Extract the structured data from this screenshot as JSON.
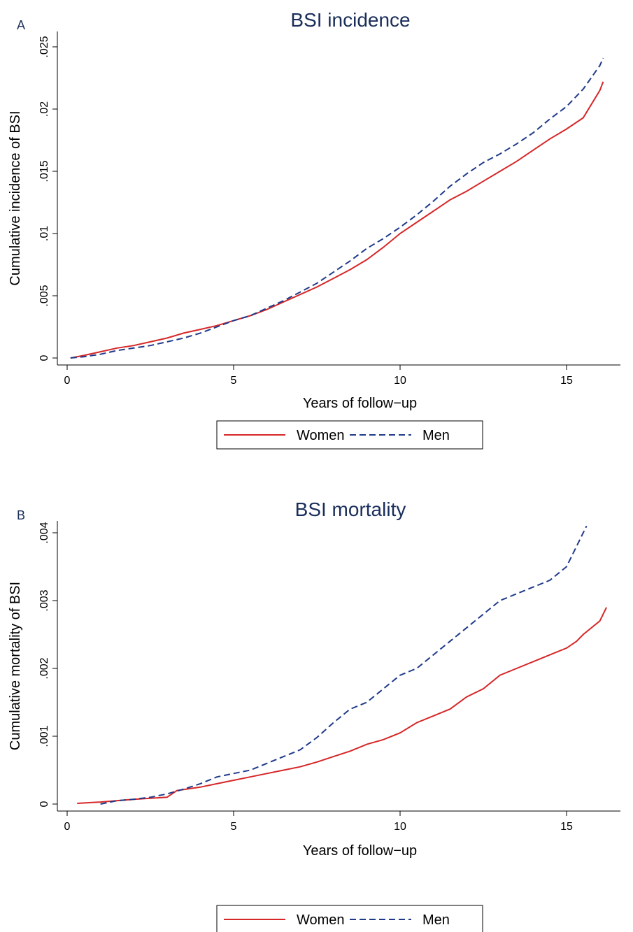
{
  "chart_data": [
    {
      "type": "line",
      "panel": "A",
      "title": "BSI incidence",
      "xlabel": "Years of follow−up",
      "ylabel": "Cumulative incidence of BSI",
      "xlim": [
        0,
        16.2
      ],
      "ylim": [
        0,
        0.025
      ],
      "xticks": [
        0,
        5,
        10,
        15
      ],
      "xtick_labels": [
        "0",
        "5",
        "10",
        "15"
      ],
      "yticks": [
        0,
        0.005,
        0.01,
        0.015,
        0.02,
        0.025
      ],
      "ytick_labels": [
        "0",
        ".005",
        ".01",
        ".015",
        ".02",
        ".025"
      ],
      "grid": false,
      "legend": "bottom",
      "series": [
        {
          "name": "Women",
          "color": "#d62728",
          "style": "solid",
          "x": [
            0.1,
            0.5,
            1,
            1.5,
            2,
            2.5,
            3,
            3.5,
            4,
            4.5,
            5,
            5.5,
            6,
            6.5,
            7,
            7.5,
            8,
            8.5,
            9,
            9.5,
            10,
            10.5,
            11,
            11.5,
            12,
            12.5,
            13,
            13.5,
            14,
            14.5,
            15,
            15.5,
            16,
            16.1
          ],
          "y": [
            0,
            0.0002,
            0.0005,
            0.0008,
            0.001,
            0.0013,
            0.0016,
            0.002,
            0.0023,
            0.0026,
            0.003,
            0.0034,
            0.0039,
            0.0045,
            0.0051,
            0.0057,
            0.0064,
            0.0071,
            0.0079,
            0.0089,
            0.01,
            0.0109,
            0.0118,
            0.0127,
            0.0134,
            0.0142,
            0.015,
            0.0158,
            0.0167,
            0.0176,
            0.0184,
            0.0193,
            0.0215,
            0.0222
          ]
        },
        {
          "name": "Men",
          "color": "#1f3a8a",
          "style": "dashed",
          "x": [
            0.1,
            0.5,
            1,
            1.5,
            2,
            2.5,
            3,
            3.5,
            4,
            4.5,
            5,
            5.5,
            6,
            6.5,
            7,
            7.5,
            8,
            8.5,
            9,
            9.5,
            10,
            10.5,
            11,
            11.5,
            12,
            12.5,
            13,
            13.5,
            14,
            14.5,
            15,
            15.5,
            16,
            16.1
          ],
          "y": [
            0,
            0.0001,
            0.0003,
            0.0006,
            0.0008,
            0.001,
            0.0013,
            0.0016,
            0.002,
            0.0025,
            0.003,
            0.0034,
            0.004,
            0.0046,
            0.0053,
            0.006,
            0.0069,
            0.0078,
            0.0088,
            0.0096,
            0.0105,
            0.0115,
            0.0126,
            0.0138,
            0.0148,
            0.0157,
            0.0164,
            0.0172,
            0.0181,
            0.0192,
            0.0202,
            0.0216,
            0.0235,
            0.0241
          ]
        }
      ]
    },
    {
      "type": "line",
      "panel": "B",
      "title": "BSI mortality",
      "xlabel": "Years of follow−up",
      "ylabel": "Cumulative mortality of BSI",
      "xlim": [
        0,
        16.2
      ],
      "ylim": [
        0,
        0.004
      ],
      "xticks": [
        0,
        5,
        10,
        15
      ],
      "xtick_labels": [
        "0",
        "5",
        "10",
        "15"
      ],
      "yticks": [
        0,
        0.001,
        0.002,
        0.003,
        0.004
      ],
      "ytick_labels": [
        "0",
        ".001",
        ".002",
        ".003",
        ".004"
      ],
      "grid": false,
      "legend": "bottom",
      "series": [
        {
          "name": "Women",
          "color": "#d62728",
          "style": "solid",
          "x": [
            0.3,
            1,
            2,
            3,
            3.3,
            4,
            4.5,
            5,
            5.5,
            6,
            6.5,
            7,
            7.5,
            8,
            8.5,
            9,
            9.5,
            10,
            10.5,
            11,
            11.5,
            12,
            12.5,
            13,
            13.5,
            14,
            14.5,
            15,
            15.3,
            15.5,
            16,
            16.2
          ],
          "y": [
            1e-05,
            3e-05,
            7e-05,
            0.0001,
            0.0002,
            0.00025,
            0.0003,
            0.00035,
            0.0004,
            0.00045,
            0.0005,
            0.00055,
            0.00062,
            0.0007,
            0.00078,
            0.00088,
            0.00095,
            0.00105,
            0.0012,
            0.0013,
            0.0014,
            0.00158,
            0.0017,
            0.0019,
            0.002,
            0.0021,
            0.0022,
            0.0023,
            0.0024,
            0.0025,
            0.0027,
            0.0029
          ]
        },
        {
          "name": "Men",
          "color": "#1f3a8a",
          "style": "dashed",
          "x": [
            1,
            1.5,
            2,
            2.5,
            3,
            3.5,
            4,
            4.5,
            5,
            5.5,
            6,
            6.5,
            7,
            7.5,
            8,
            8.5,
            9,
            9.5,
            10,
            10.5,
            11,
            11.5,
            12,
            12.5,
            13,
            13.5,
            14,
            14.5,
            15,
            15.3,
            15.6
          ],
          "y": [
            0,
            5e-05,
            7e-05,
            0.0001,
            0.00015,
            0.00022,
            0.0003,
            0.0004,
            0.00045,
            0.0005,
            0.0006,
            0.0007,
            0.0008,
            0.00098,
            0.0012,
            0.0014,
            0.0015,
            0.0017,
            0.0019,
            0.002,
            0.0022,
            0.0024,
            0.0026,
            0.0028,
            0.003,
            0.0031,
            0.0032,
            0.0033,
            0.0035,
            0.0038,
            0.0041
          ]
        }
      ]
    }
  ]
}
